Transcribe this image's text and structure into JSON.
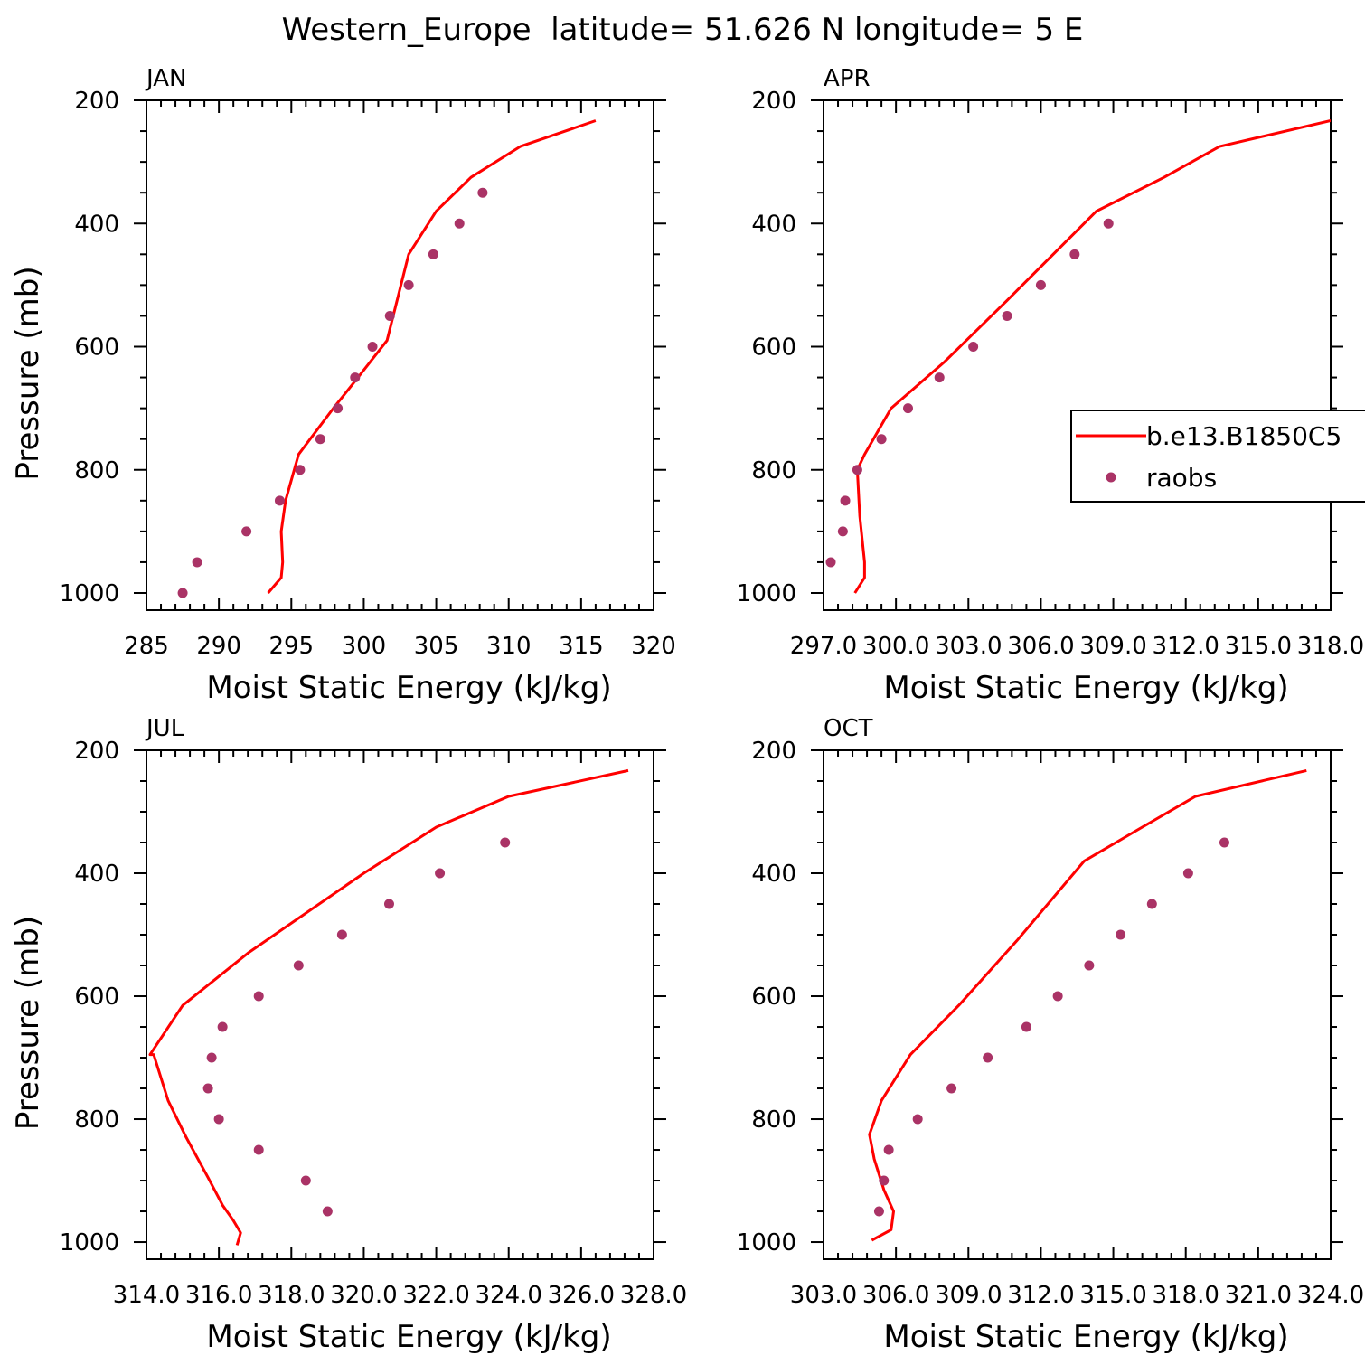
{
  "title": "Western_Europe  latitude= 51.626 N longitude= 5 E",
  "legend": {
    "model_label": "b.e13.B1850C5",
    "obs_label": "raobs"
  },
  "colors": {
    "model": "#ff0000",
    "obs": "#aa3366",
    "axis": "#000000"
  },
  "chart_data": [
    {
      "type": "line",
      "panel": "JAN",
      "title": "JAN",
      "xlabel": "Moist Static Energy (kJ/kg)",
      "ylabel": "Pressure (mb)",
      "xlim": [
        285,
        320
      ],
      "ylim": [
        1000,
        200
      ],
      "x_ticks": [
        "285",
        "290",
        "295",
        "300",
        "305",
        "310",
        "315",
        "320"
      ],
      "y_ticks": [
        "200",
        "400",
        "600",
        "800",
        "1000"
      ],
      "series": [
        {
          "name": "b.e13.B1850C5",
          "kind": "line",
          "x": [
            293.4,
            294.3,
            294.4,
            294.3,
            294.6,
            295.5,
            297.9,
            299.6,
            301.6,
            303.1,
            305.0,
            307.4,
            310.8,
            316.0
          ],
          "y": [
            1000,
            975,
            950,
            900,
            850,
            775,
            700,
            650,
            590,
            450,
            380,
            325,
            275,
            233
          ]
        },
        {
          "name": "raobs",
          "kind": "scatter",
          "x": [
            287.5,
            288.5,
            291.9,
            294.2,
            295.6,
            297.0,
            298.2,
            299.4,
            300.6,
            301.8,
            303.1,
            304.8,
            306.6,
            308.2
          ],
          "y": [
            1000,
            950,
            900,
            850,
            800,
            750,
            700,
            650,
            600,
            550,
            500,
            450,
            400,
            350
          ]
        }
      ]
    },
    {
      "type": "line",
      "panel": "APR",
      "title": "APR",
      "xlabel": "Moist Static Energy (kJ/kg)",
      "ylabel": "",
      "xlim": [
        297.0,
        318.0
      ],
      "ylim": [
        1000,
        200
      ],
      "x_ticks": [
        "297.0",
        "300.0",
        "303.0",
        "306.0",
        "309.0",
        "312.0",
        "315.0",
        "318.0"
      ],
      "y_ticks": [
        "200",
        "400",
        "600",
        "800",
        "1000"
      ],
      "series": [
        {
          "name": "b.e13.B1850C5",
          "kind": "line",
          "x": [
            298.3,
            298.7,
            298.7,
            298.5,
            298.4,
            298.7,
            299.8,
            302.0,
            304.6,
            308.3,
            311.1,
            313.4,
            318.0
          ],
          "y": [
            1000,
            975,
            950,
            875,
            800,
            775,
            700,
            625,
            525,
            380,
            325,
            275,
            233
          ]
        },
        {
          "name": "raobs",
          "kind": "scatter",
          "x": [
            297.3,
            297.8,
            297.9,
            298.4,
            299.4,
            300.5,
            301.8,
            303.2,
            304.6,
            306.0,
            307.4,
            308.8
          ],
          "y": [
            950,
            900,
            850,
            800,
            750,
            700,
            650,
            600,
            550,
            500,
            450,
            400
          ]
        }
      ]
    },
    {
      "type": "line",
      "panel": "JUL",
      "title": "JUL",
      "xlabel": "Moist Static Energy (kJ/kg)",
      "ylabel": "Pressure (mb)",
      "xlim": [
        314.0,
        328.0
      ],
      "ylim": [
        1000,
        200
      ],
      "x_ticks": [
        "314.0",
        "316.0",
        "318.0",
        "320.0",
        "322.0",
        "324.0",
        "326.0",
        "328.0"
      ],
      "y_ticks": [
        "200",
        "400",
        "600",
        "800",
        "1000"
      ],
      "series": [
        {
          "name": "b.e13.B1850C5",
          "kind": "line",
          "x": [
            316.5,
            316.6,
            316.4,
            316.1,
            315.7,
            315.1,
            314.6,
            314.2,
            314.1,
            315.0,
            316.8,
            320.0,
            322.0,
            324.0,
            327.3
          ],
          "y": [
            1005,
            985,
            965,
            940,
            895,
            830,
            770,
            695,
            695,
            615,
            530,
            400,
            325,
            275,
            233
          ]
        },
        {
          "name": "raobs",
          "kind": "scatter",
          "x": [
            319.0,
            318.4,
            317.1,
            316.0,
            315.7,
            315.8,
            316.1,
            317.1,
            318.2,
            319.4,
            320.7,
            322.1,
            323.9
          ],
          "y": [
            950,
            900,
            850,
            800,
            750,
            700,
            650,
            600,
            550,
            500,
            450,
            400,
            350
          ]
        }
      ]
    },
    {
      "type": "line",
      "panel": "OCT",
      "title": "OCT",
      "xlabel": "Moist Static Energy (kJ/kg)",
      "ylabel": "",
      "xlim": [
        303.0,
        324.0
      ],
      "ylim": [
        1000,
        200
      ],
      "x_ticks": [
        "303.0",
        "306.0",
        "309.0",
        "312.0",
        "315.0",
        "318.0",
        "321.0",
        "324.0"
      ],
      "y_ticks": [
        "200",
        "400",
        "600",
        "800",
        "1000"
      ],
      "series": [
        {
          "name": "b.e13.B1850C5",
          "kind": "line",
          "x": [
            305.0,
            305.8,
            305.9,
            305.5,
            305.1,
            304.9,
            305.4,
            306.6,
            308.6,
            311.0,
            313.8,
            316.2,
            318.4,
            323.0
          ],
          "y": [
            997,
            980,
            950,
            915,
            865,
            825,
            770,
            695,
            615,
            510,
            380,
            325,
            275,
            233
          ]
        },
        {
          "name": "raobs",
          "kind": "scatter",
          "x": [
            305.3,
            305.5,
            305.7,
            306.9,
            308.3,
            309.8,
            311.4,
            312.7,
            314.0,
            315.3,
            316.6,
            318.1,
            319.6
          ],
          "y": [
            950,
            900,
            850,
            800,
            750,
            700,
            650,
            600,
            550,
            500,
            450,
            400,
            350
          ]
        }
      ]
    }
  ]
}
